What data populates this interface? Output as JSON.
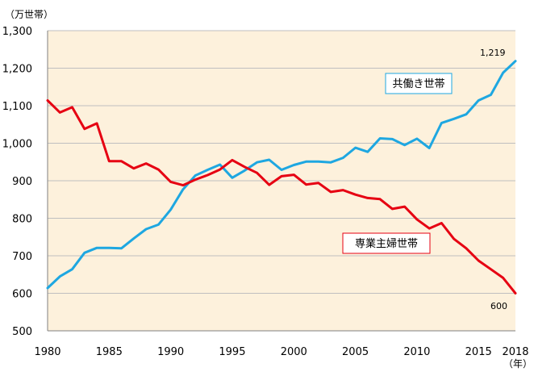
{
  "chart_data": {
    "type": "line",
    "y_unit": "（万世帯）",
    "x_unit": "（年）",
    "ylim": [
      500,
      1300
    ],
    "y_ticks": [
      500,
      600,
      700,
      800,
      900,
      1000,
      1100,
      1200,
      1300
    ],
    "y_tick_labels": [
      "500",
      "600",
      "700",
      "800",
      "900",
      "1,000",
      "1,100",
      "1,200",
      "1,300"
    ],
    "xlim": [
      1980,
      2018
    ],
    "x_ticks": [
      1980,
      1985,
      1990,
      1995,
      2000,
      2005,
      2010,
      2015,
      2018
    ],
    "x_tick_labels": [
      "1980",
      "1985",
      "1990",
      "1995",
      "2000",
      "2005",
      "2010",
      "2015",
      "2018"
    ],
    "grid": "horizontal",
    "background": "#fdf1dc",
    "x": [
      1980,
      1981,
      1982,
      1983,
      1984,
      1985,
      1986,
      1987,
      1988,
      1989,
      1990,
      1991,
      1992,
      1993,
      1994,
      1995,
      1996,
      1997,
      1998,
      1999,
      2000,
      2001,
      2002,
      2003,
      2004,
      2005,
      2006,
      2007,
      2008,
      2009,
      2010,
      2011,
      2012,
      2013,
      2014,
      2015,
      2016,
      2017,
      2018
    ],
    "series": [
      {
        "name": "共働き世帯",
        "color": "#1ea7e1",
        "values": [
          614,
          645,
          664,
          708,
          721,
          721,
          720,
          746,
          771,
          783,
          823,
          877,
          914,
          929,
          943,
          908,
          927,
          949,
          956,
          929,
          942,
          951,
          951,
          949,
          961,
          988,
          977,
          1013,
          1011,
          995,
          1012,
          987,
          1054,
          1065,
          1077,
          1114,
          1129,
          1188,
          1219
        ],
        "end_label": "1,219"
      },
      {
        "name": "専業主婦世帯",
        "color": "#e60012",
        "values": [
          1114,
          1082,
          1096,
          1038,
          1053,
          952,
          952,
          933,
          946,
          930,
          897,
          888,
          903,
          915,
          930,
          955,
          937,
          921,
          889,
          912,
          916,
          890,
          894,
          870,
          875,
          863,
          854,
          851,
          825,
          831,
          797,
          773,
          787,
          745,
          720,
          687,
          664,
          641,
          600
        ],
        "end_label": "600"
      }
    ]
  }
}
